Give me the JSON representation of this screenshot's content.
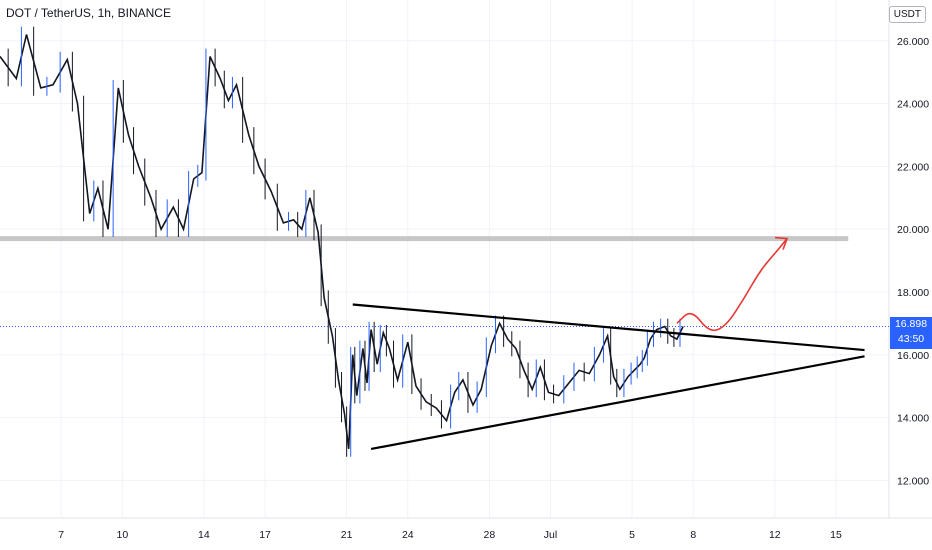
{
  "chart_data": {
    "type": "line",
    "title": "DOT / TetherUS, 1h, BINANCE",
    "quote_unit": "USDT",
    "last_price": "16.898",
    "countdown": "43:50",
    "y_ticks": [
      "26.000",
      "24.000",
      "22.000",
      "20.000",
      "18.000",
      "16.000",
      "14.000",
      "12.000"
    ],
    "y_tick_values": [
      26,
      24,
      22,
      20,
      18,
      16,
      14,
      12
    ],
    "ylim": [
      10.8,
      27.3
    ],
    "x_ticks": [
      "7",
      "10",
      "14",
      "17",
      "21",
      "24",
      "28",
      "Jul",
      "5",
      "8",
      "12",
      "15"
    ],
    "x_tick_days": [
      7,
      10,
      14,
      17,
      21,
      24,
      28,
      31,
      35,
      38,
      42,
      45
    ],
    "xlim": [
      4.0,
      47.6
    ],
    "series": [
      {
        "x": [
          4.0,
          4.8,
          5.3,
          6.0,
          6.6,
          7.3,
          7.8,
          8.4,
          8.8,
          9.3,
          9.8,
          10.3,
          10.8,
          11.4,
          11.9,
          12.5,
          13.0,
          13.5,
          13.9,
          14.3,
          14.8,
          15.2,
          15.6,
          16.2,
          16.7,
          17.3,
          17.9,
          18.4,
          18.8,
          19.2,
          19.6,
          19.9,
          20.3,
          20.6,
          20.9,
          21.1,
          21.3,
          21.5,
          21.8,
          22.0,
          22.2,
          22.5,
          22.8,
          23.1,
          23.5,
          24.0,
          24.4,
          24.9,
          25.4,
          25.9,
          26.3,
          26.7,
          27.2,
          27.6,
          28.1,
          28.5,
          28.9,
          29.3,
          29.7,
          30.1,
          30.5,
          30.9,
          31.4,
          31.9,
          32.4,
          32.9,
          33.4,
          33.8,
          34.1,
          34.4,
          34.8,
          35.1,
          35.4,
          35.6,
          35.9,
          36.2,
          36.6,
          36.9,
          37.2,
          37.5
        ],
        "values": [
          25.5,
          24.8,
          26.2,
          24.5,
          24.6,
          25.4,
          24.0,
          20.5,
          21.3,
          20.0,
          24.5,
          23.0,
          22.0,
          21.0,
          20.0,
          20.7,
          20.0,
          21.6,
          21.8,
          25.5,
          24.8,
          24.1,
          24.6,
          23.0,
          22.0,
          21.2,
          20.2,
          20.3,
          20.0,
          21.0,
          19.9,
          17.8,
          16.6,
          15.2,
          14.1,
          13.0,
          16.0,
          14.7,
          16.2,
          15.1,
          16.8,
          15.7,
          16.7,
          16.2,
          15.2,
          16.4,
          15.0,
          14.5,
          14.3,
          13.9,
          14.8,
          15.2,
          14.4,
          14.9,
          16.3,
          17.0,
          16.5,
          16.2,
          15.5,
          14.9,
          15.6,
          14.8,
          14.7,
          15.1,
          15.5,
          15.4,
          16.0,
          16.6,
          15.3,
          14.9,
          15.3,
          15.5,
          15.7,
          15.9,
          16.5,
          16.8,
          16.9,
          16.6,
          16.5,
          16.9
        ]
      }
    ],
    "resistance_price": 19.7,
    "triangle_upper": {
      "x": [
        21.3,
        46.4
      ],
      "y": [
        17.6,
        16.15
      ]
    },
    "triangle_lower": {
      "x": [
        22.2,
        46.4
      ],
      "y": [
        13.0,
        15.95
      ]
    },
    "projection": {
      "x": [
        37.2,
        37.9,
        38.8,
        39.6,
        40.5,
        41.3,
        42.1,
        42.6
      ],
      "y": [
        17.0,
        17.45,
        16.7,
        16.9,
        17.8,
        18.7,
        19.3,
        19.7
      ]
    },
    "grid": true,
    "legend": "none"
  }
}
